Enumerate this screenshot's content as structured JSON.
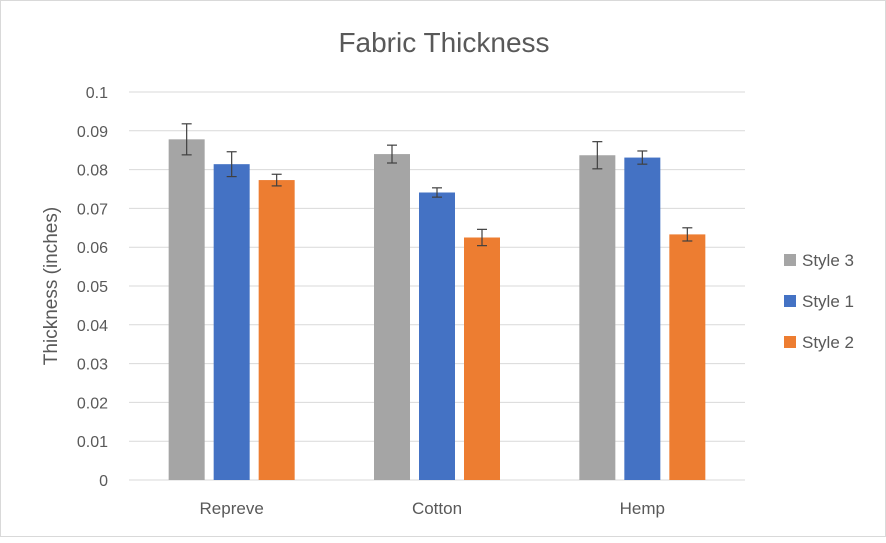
{
  "chart_data": {
    "type": "bar",
    "title": "Fabric Thickness",
    "xlabel": "",
    "ylabel": "Thickness (inches)",
    "ylim": [
      0,
      0.1
    ],
    "yticks": [
      0,
      0.01,
      0.02,
      0.03,
      0.04,
      0.05,
      0.06,
      0.07,
      0.08,
      0.09,
      0.1
    ],
    "ytick_labels": [
      "0",
      "0.01",
      "0.02",
      "0.03",
      "0.04",
      "0.05",
      "0.06",
      "0.07",
      "0.08",
      "0.09",
      "0.1"
    ],
    "categories": [
      "Repreve",
      "Cotton",
      "Hemp"
    ],
    "grid": "horizontal",
    "legend_position": "right",
    "series": [
      {
        "name": "Style 3",
        "color": "#a5a5a5",
        "values": [
          0.0878,
          0.084,
          0.0837
        ],
        "errors": [
          0.004,
          0.0023,
          0.0035
        ]
      },
      {
        "name": "Style 1",
        "color": "#4472c4",
        "values": [
          0.0814,
          0.0741,
          0.0831
        ],
        "errors": [
          0.0032,
          0.0012,
          0.0017
        ]
      },
      {
        "name": "Style 2",
        "color": "#ed7d31",
        "values": [
          0.0773,
          0.0625,
          0.0633
        ],
        "errors": [
          0.0015,
          0.0021,
          0.0017
        ]
      }
    ]
  }
}
